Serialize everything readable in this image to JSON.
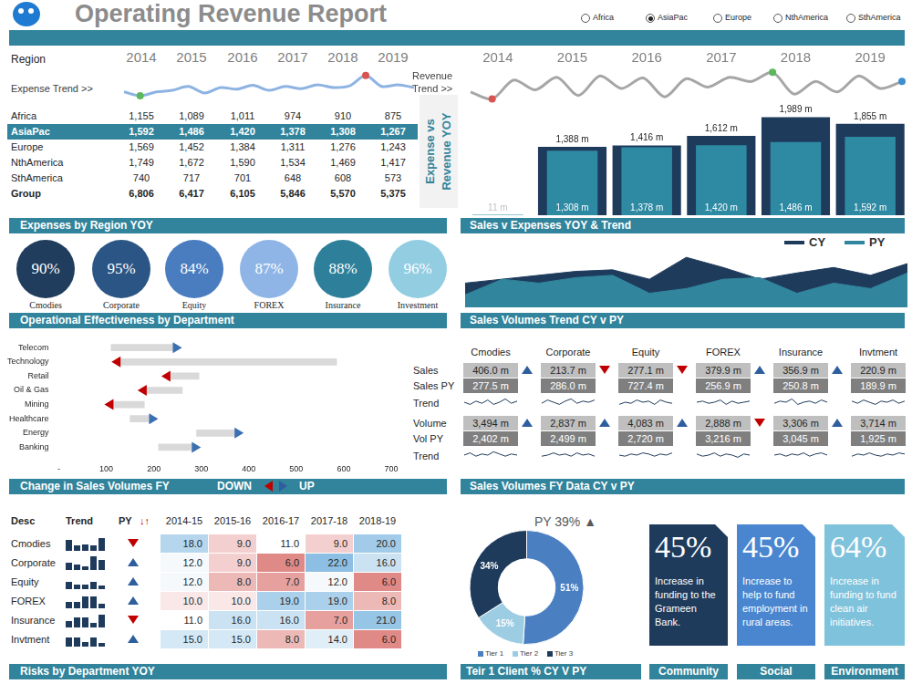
{
  "header": {
    "title": "Operating Revenue Report",
    "regions": [
      "Africa",
      "AsiaPac",
      "Europe",
      "NthAmerica",
      "SthAmerica"
    ],
    "selected": "AsiaPac"
  },
  "region_table": {
    "header": "Region",
    "years": [
      "2014",
      "2015",
      "2016",
      "2017",
      "2018",
      "2019"
    ],
    "rows": [
      {
        "name": "Africa",
        "values": [
          "1,155",
          "1,089",
          "1,011",
          "974",
          "910",
          "875"
        ]
      },
      {
        "name": "AsiaPac",
        "values": [
          "1,592",
          "1,486",
          "1,420",
          "1,378",
          "1,308",
          "1,267"
        ]
      },
      {
        "name": "Europe",
        "values": [
          "1,569",
          "1,452",
          "1,384",
          "1,311",
          "1,276",
          "1,243"
        ]
      },
      {
        "name": "NthAmerica",
        "values": [
          "1,749",
          "1,672",
          "1,590",
          "1,534",
          "1,469",
          "1,417"
        ]
      },
      {
        "name": "SthAmerica",
        "values": [
          "740",
          "717",
          "701",
          "648",
          "608",
          "573"
        ]
      },
      {
        "name": "Group",
        "values": [
          "6,806",
          "6,417",
          "6,105",
          "5,846",
          "5,570",
          "5,375"
        ]
      }
    ],
    "highlight": "AsiaPac",
    "bold": "Group"
  },
  "chart_data": [
    {
      "type": "line",
      "title": "Expense Trend >>",
      "values": [
        22,
        15,
        22,
        25,
        32,
        20,
        30,
        27,
        34,
        25,
        32,
        28,
        35,
        30,
        33,
        52,
        32,
        35,
        30
      ],
      "colors": [
        null,
        "#5cb85c",
        null,
        null,
        null,
        null,
        null,
        null,
        null,
        null,
        null,
        null,
        null,
        null,
        null,
        "#d9534f",
        null,
        null,
        null
      ],
      "color": "#8db3e2",
      "marker": "circle",
      "ylim": [
        0,
        60
      ],
      "tick_labels": false,
      "grid": false
    },
    {
      "type": "line",
      "title": "Revenue Trend >>",
      "values": [
        25,
        15,
        42,
        28,
        46,
        20,
        48,
        30,
        45,
        18,
        44,
        32,
        46,
        40,
        53,
        22,
        40,
        25,
        48,
        30,
        40
      ],
      "colors": [
        null,
        "#d9534f",
        null,
        null,
        null,
        null,
        null,
        null,
        null,
        null,
        null,
        null,
        null,
        null,
        "#5cb85c",
        null,
        null,
        null,
        null,
        null,
        "#3d8fd0"
      ],
      "color": "#a6a6a6",
      "marker": "circle",
      "ylim": [
        0,
        60
      ],
      "tick_labels": false,
      "grid": false
    },
    {
      "type": "bar",
      "title": "Expense vs Revenue YOY",
      "categories": [
        "2014",
        "2015",
        "2016",
        "2017",
        "2018",
        "2019"
      ],
      "series": [
        {
          "color": "#1f3b5c",
          "values": [
            null,
            1388,
            1416,
            1612,
            1989,
            1855
          ],
          "value_labels": [
            null,
            "1,388 m",
            "1,416 m",
            "1,612 m",
            "1,989 m",
            "1,855 m"
          ]
        },
        {
          "color": "#2e8aa3",
          "values": [
            11,
            1308,
            1378,
            1420,
            1486,
            1592
          ],
          "value_labels": [
            "11 m",
            "1,308 m",
            "1,378 m",
            "1,420 m",
            "1,486 m",
            "1,592 m"
          ]
        }
      ],
      "ylim": [
        0,
        2000
      ],
      "data_labels": true,
      "tick_labels": "x",
      "grid": false
    },
    {
      "type": "area",
      "series": [
        {
          "name": "CY",
          "color": "#1f3b5c",
          "values": [
            31,
            36,
            41,
            46,
            48,
            36,
            64,
            51,
            36,
            44,
            51,
            41,
            56
          ]
        },
        {
          "name": "PY",
          "color": "#31859c",
          "values": [
            16,
            36,
            31,
            38,
            41,
            18,
            24,
            36,
            38,
            18,
            31,
            24,
            44
          ]
        }
      ],
      "ylim": [
        0,
        70
      ],
      "legend": "top right",
      "tick_labels": false,
      "grid": false
    },
    {
      "type": "bar",
      "orientation": "horizontal",
      "categories": [
        "Telecom",
        "Technology",
        "Retail",
        "Oil & Gas",
        "Mining",
        "Healthcare",
        "Energy",
        "Banking"
      ],
      "start": [
        110,
        585,
        295,
        260,
        180,
        150,
        290,
        210
      ],
      "end": [
        240,
        130,
        235,
        185,
        115,
        190,
        370,
        280
      ],
      "color": "#d9d9d9",
      "colors": [
        "#3a6fb0",
        "#c00000",
        "#c00000",
        "#c00000",
        "#c00000",
        "#3a6fb0",
        "#3a6fb0",
        "#3a6fb0"
      ],
      "xlim": [
        0,
        700
      ],
      "xticks": [
        {
          "value": 0,
          "label": "-"
        },
        100,
        200,
        300,
        400,
        500,
        600,
        700
      ],
      "grid": false
    },
    {
      "type": "doughnut",
      "title": "PY 39% ▲",
      "categories": [
        "Tier 1",
        "Tier 2",
        "Tier 3"
      ],
      "values": [
        51,
        15,
        34
      ],
      "value_labels": [
        "51%",
        "15%",
        "34%"
      ],
      "colors": [
        "#4a7fc1",
        "#9dcde3",
        "#1f3b5c"
      ],
      "legend": "bottom",
      "data_labels": true
    }
  ],
  "section_bars": [
    {
      "left": "Expenses by Region YOY",
      "right": [
        "Sales v Expenses YOY & Trend"
      ]
    },
    {
      "left": "Operational Effectiveness by Department",
      "right": [
        "Sales Volumes Trend CY v PY"
      ]
    },
    {
      "left": "Change in Sales Volumes FY",
      "left_legend": [
        "DOWN",
        "UP"
      ],
      "right": [
        "Sales Volumes FY Data CY v PY"
      ]
    },
    {
      "left": "Risks by Department YOY",
      "right": [
        "Teir 1 Client % CY V PY",
        "Community",
        "Social",
        "Environment"
      ]
    }
  ],
  "expense_circles": [
    {
      "label": "Cmodies",
      "text": "90%",
      "color": "#203d5e"
    },
    {
      "label": "Corporate",
      "text": "95%",
      "color": "#2b5585"
    },
    {
      "label": "Equity",
      "text": "84%",
      "color": "#4a7cc0"
    },
    {
      "label": "FOREX",
      "text": "87%",
      "color": "#8fb5e6"
    },
    {
      "label": "Insurance",
      "text": "88%",
      "color": "#2e7f9a"
    },
    {
      "label": "Investment",
      "text": "96%",
      "color": "#92cde2"
    }
  ],
  "sales_volumes": {
    "columns": [
      "Cmodies",
      "Corporate",
      "Equity",
      "FOREX",
      "Insurance",
      "Invtment"
    ],
    "rows": [
      {
        "label": "Sales",
        "values": [
          "406.0 m",
          "213.7 m",
          "277.1 m",
          "379.9 m",
          "356.9 m",
          "220.9 m"
        ],
        "arrows": [
          "up",
          "down",
          "down",
          "up",
          "up",
          null
        ]
      },
      {
        "label": "Sales PY",
        "values": [
          "277.5 m",
          "286.0 m",
          "727.4 m",
          "256.9 m",
          "250.8 m",
          "189.9 m"
        ]
      },
      {
        "label": "Trend",
        "trends": [
          [
            5,
            3,
            6,
            4,
            7,
            3,
            5,
            8,
            4,
            6
          ],
          [
            4,
            7,
            5,
            3,
            6,
            8,
            4,
            6,
            5,
            7
          ],
          [
            3,
            5,
            4,
            7,
            5,
            6,
            3,
            7,
            5,
            4
          ],
          [
            5,
            6,
            4,
            5,
            7,
            3,
            6,
            4,
            5,
            6
          ],
          [
            4,
            6,
            5,
            8,
            3,
            5,
            6,
            4,
            7,
            5
          ],
          [
            6,
            4,
            7,
            5,
            3,
            6,
            5,
            7,
            4,
            6
          ]
        ]
      },
      {
        "label": "Volume",
        "values": [
          "3,494 m",
          "2,837 m",
          "4,083 m",
          "2,888 m",
          "3,306 m",
          "3,714 m"
        ],
        "arrows": [
          "up",
          "up",
          "up",
          "down",
          "up",
          null
        ]
      },
      {
        "label": "Vol PY",
        "values": [
          "2,402 m",
          "2,499 m",
          "2,720 m",
          "3,216 m",
          "3,045 m",
          "1,925 m"
        ]
      },
      {
        "label": "Trend",
        "trends": [
          [
            5,
            7,
            4,
            6,
            5,
            8,
            6,
            4,
            6,
            5
          ],
          [
            4,
            5,
            7,
            5,
            6,
            4,
            7,
            5,
            6,
            4
          ],
          [
            5,
            4,
            6,
            5,
            7,
            6,
            4,
            6,
            5,
            7
          ],
          [
            6,
            4,
            5,
            7,
            4,
            6,
            5,
            3,
            6,
            5
          ],
          [
            5,
            6,
            4,
            6,
            5,
            7,
            4,
            6,
            7,
            5
          ],
          [
            4,
            6,
            5,
            7,
            5,
            4,
            6,
            5,
            7,
            6
          ]
        ]
      }
    ],
    "trend_ylim": [
      0,
      10
    ]
  },
  "change_table": {
    "headers": [
      "Desc",
      "Trend",
      "PY",
      "↓↑"
    ],
    "periods": [
      "2014-15",
      "2015-16",
      "2016-17",
      "2017-18",
      "2018-19"
    ],
    "rows": [
      {
        "desc": "Cmodies",
        "py": "down",
        "values": [
          18,
          9,
          11,
          9,
          20
        ],
        "value_labels": [
          "18.0",
          "9.0",
          "11.0",
          "9.0",
          "20.0"
        ]
      },
      {
        "desc": "Corporate",
        "py": "up",
        "values": [
          12,
          9,
          6,
          22,
          16
        ],
        "value_labels": [
          "12.0",
          "9.0",
          "6.0",
          "22.0",
          "16.0"
        ]
      },
      {
        "desc": "Equity",
        "py": "up",
        "values": [
          12,
          8,
          7,
          12,
          6
        ],
        "value_labels": [
          "12.0",
          "8.0",
          "7.0",
          "12.0",
          "6.0"
        ]
      },
      {
        "desc": "FOREX",
        "py": "up",
        "values": [
          10,
          10,
          19,
          19,
          8
        ],
        "value_labels": [
          "10.0",
          "10.0",
          "19.0",
          "19.0",
          "8.0"
        ]
      },
      {
        "desc": "Insurance",
        "py": "down",
        "values": [
          11,
          16,
          16,
          7,
          21
        ],
        "value_labels": [
          "11.0",
          "16.0",
          "16.0",
          "7.0",
          "21.0"
        ]
      },
      {
        "desc": "Invtment",
        "py": "up",
        "values": [
          15,
          15,
          8,
          14,
          6
        ],
        "value_labels": [
          "15.0",
          "15.0",
          "8.0",
          "14.0",
          "6.0"
        ]
      }
    ],
    "color_scale": {
      "min": 6,
      "mid": 11,
      "max": 22
    },
    "trend_ylim": [
      0,
      22
    ]
  },
  "cards": [
    {
      "value": "45%",
      "text": "Increase in funding to the Grameen Bank.",
      "color": "#1f3b5c"
    },
    {
      "value": "45%",
      "text": "Increase to help to fund employment in rural areas.",
      "color": "#4a86cf"
    },
    {
      "value": "64%",
      "text": "Increase in funding to fund clean air initiatives.",
      "color": "#7fc2db"
    }
  ]
}
